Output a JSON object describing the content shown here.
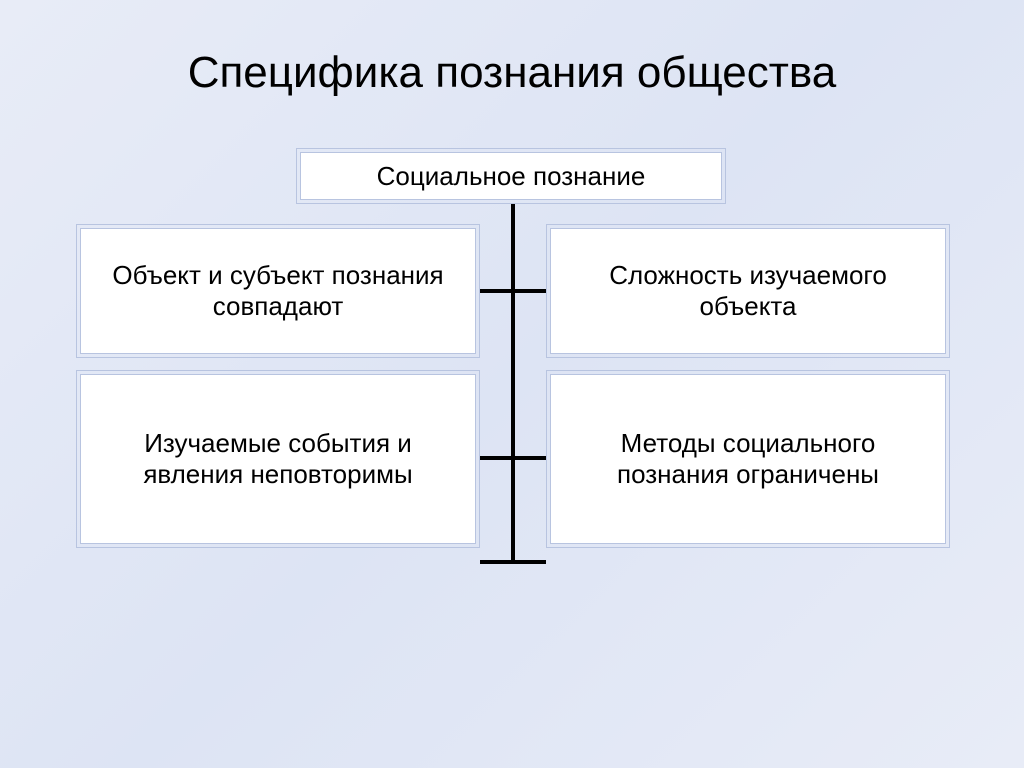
{
  "title": "Специфика познания общества",
  "diagram": {
    "type": "tree",
    "background_gradient": [
      "#e8ecf7",
      "#dde4f4",
      "#e8ecf7"
    ],
    "root": {
      "label": "Социальное познание",
      "bg_color": "#ffffff",
      "border_color": "#b8c4e0",
      "fontsize": 26
    },
    "children": [
      {
        "label": "Объект и субъект познания совпадают",
        "bg_color": "#ffffff",
        "border_color": "#b8c4e0",
        "fontsize": 26
      },
      {
        "label": "Сложность изучаемого объекта",
        "bg_color": "#ffffff",
        "border_color": "#b8c4e0",
        "fontsize": 26
      },
      {
        "label": "Изучаемые события и явления неповторимы",
        "bg_color": "#ffffff",
        "border_color": "#b8c4e0",
        "fontsize": 26
      },
      {
        "label": "Методы социального познания ограничены",
        "bg_color": "#ffffff",
        "border_color": "#b8c4e0",
        "fontsize": 26
      }
    ],
    "connector_color": "#000000",
    "connector_width": 4,
    "title_fontsize": 44,
    "title_color": "#000000"
  }
}
